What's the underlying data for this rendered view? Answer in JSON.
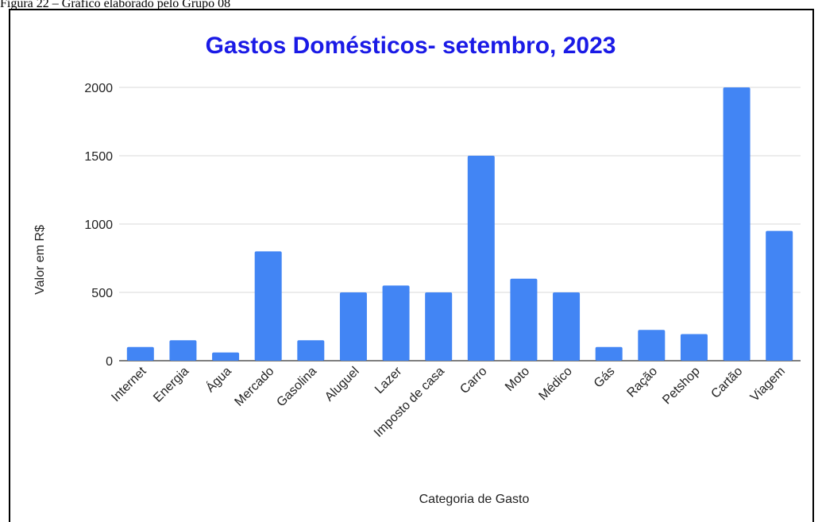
{
  "caption": "Figura 22 – Gráfico elaborado pelo Grupo 08",
  "colors": {
    "bar": "#4285f4",
    "title": "#1a1ae6"
  },
  "chart_data": {
    "type": "bar",
    "title": "Gastos Domésticos- setembro, 2023",
    "xlabel": "Categoria de Gasto",
    "ylabel": "Valor em R$",
    "ylim": [
      0,
      2000
    ],
    "yticks": [
      0,
      500,
      1000,
      1500,
      2000
    ],
    "grid": true,
    "legend": "none",
    "categories": [
      "Internet",
      "Energia",
      "Água",
      "Mercado",
      "Gasolina",
      "Aluguel",
      "Lazer",
      "Imposto de casa",
      "Carro",
      "Moto",
      "Médico",
      "Gás",
      "Ração",
      "Petshop",
      "Cartão",
      "Viagem"
    ],
    "values": [
      100,
      150,
      60,
      800,
      150,
      500,
      550,
      500,
      1500,
      600,
      500,
      100,
      225,
      195,
      2000,
      950
    ]
  }
}
